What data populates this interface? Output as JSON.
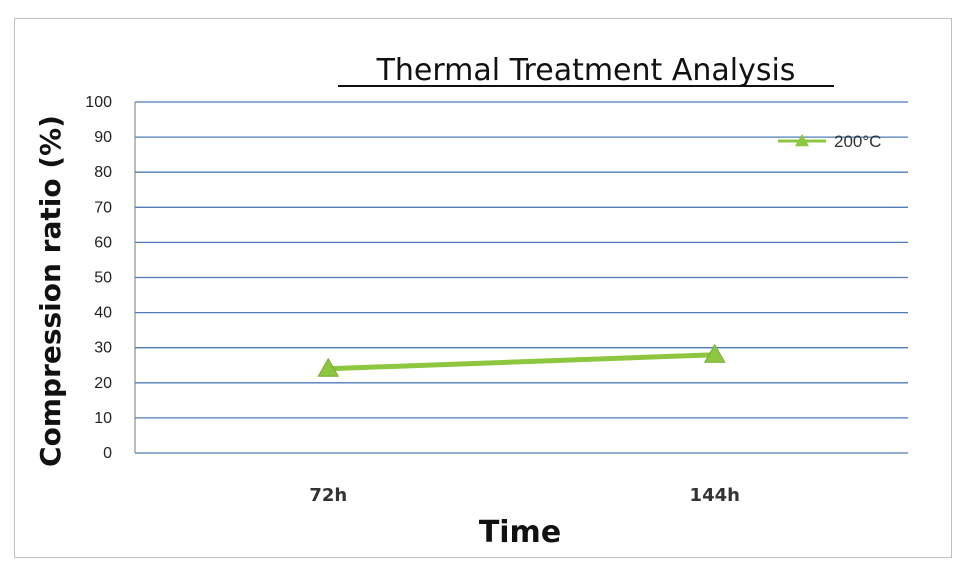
{
  "chart_data": {
    "type": "line",
    "title": "Thermal Treatment Analysis",
    "xlabel": "Time",
    "ylabel": "Compression ratio (%)",
    "categories": [
      "72h",
      "144h"
    ],
    "ylim": [
      0,
      100
    ],
    "yticks": [
      0,
      10,
      20,
      30,
      40,
      50,
      60,
      70,
      80,
      90,
      100
    ],
    "grid": true,
    "legend_position": "top-right",
    "series": [
      {
        "name": "200°C",
        "values": [
          24,
          28
        ],
        "color": "#8dc63f",
        "marker": "triangle"
      }
    ]
  }
}
